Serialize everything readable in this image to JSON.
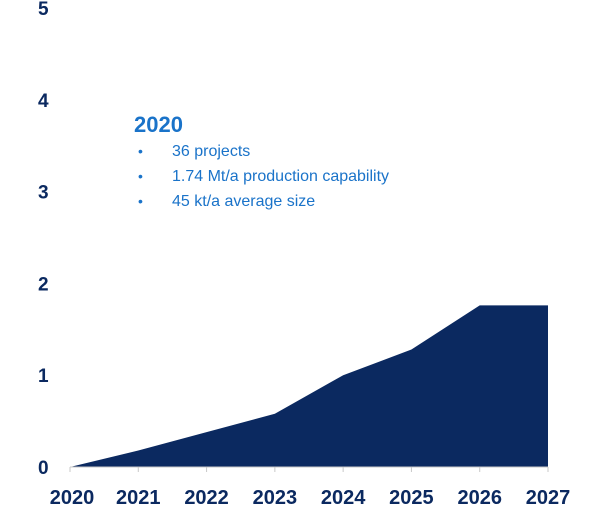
{
  "chart_data": {
    "type": "area",
    "x": [
      "2020",
      "2021",
      "2022",
      "2023",
      "2024",
      "2025",
      "2026",
      "2027"
    ],
    "x_values": [
      2020,
      2021,
      2022,
      2023,
      2024,
      2025,
      2026,
      2027
    ],
    "series": [
      {
        "values": [
          0.0,
          0.18,
          0.38,
          0.58,
          1.0,
          1.28,
          1.76,
          1.76
        ],
        "color": "#0b2960"
      }
    ],
    "ylim": [
      0,
      5
    ],
    "y_ticks": [
      "0",
      "1",
      "2",
      "3",
      "4",
      "5"
    ],
    "x_ticks": [
      "2020",
      "2021",
      "2022",
      "2023",
      "2024",
      "2025",
      "2026",
      "2027"
    ],
    "grid": false,
    "legend": "none",
    "annotation": {
      "title": "2020",
      "items": [
        "36 projects",
        "1.74 Mt/a production capability",
        "45 kt/a average size"
      ],
      "bullet": "•",
      "color": "#1a73c9"
    },
    "colors": {
      "area": "#0b2960",
      "axis": "#c8c8c8",
      "tick_text": "#0b2960",
      "annotation_text": "#1a73c9"
    }
  }
}
